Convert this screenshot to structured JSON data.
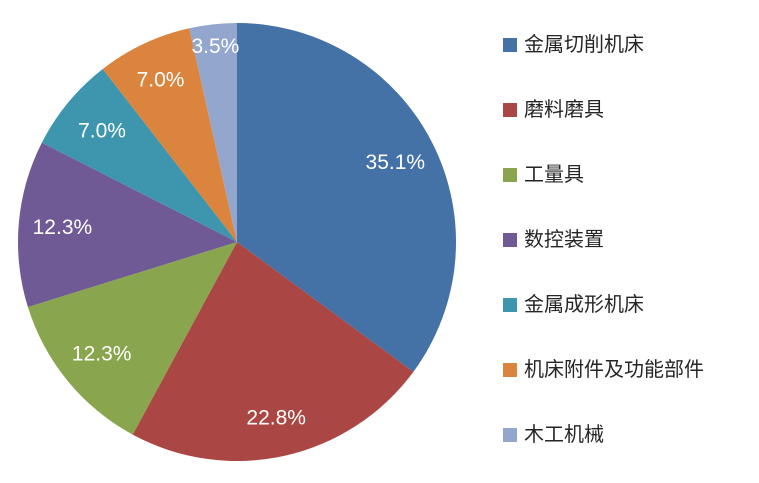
{
  "chart_data": {
    "type": "pie",
    "title": "",
    "legend_position": "right",
    "background_color": "#FFFFFF",
    "data_label_color": "#FFFFFF",
    "start_angle_deg": 0,
    "direction": "clockwise",
    "slices": [
      {
        "label": "金属切削机床",
        "value": 35.1,
        "display": "35.1%",
        "color": "#4471A6"
      },
      {
        "label": "磨料磨具",
        "value": 22.8,
        "display": "22.8%",
        "color": "#AA4643"
      },
      {
        "label": "工量具",
        "value": 12.3,
        "display": "12.3%",
        "color": "#89A54E"
      },
      {
        "label": "数控装置",
        "value": 12.3,
        "display": "12.3%",
        "color": "#705A96"
      },
      {
        "label": "金属成形机床",
        "value": 7.0,
        "display": "7.0%",
        "color": "#3D96AE"
      },
      {
        "label": "机床附件及功能部件",
        "value": 7.0,
        "display": "7.0%",
        "color": "#DB843D"
      },
      {
        "label": "木工机械",
        "value": 3.5,
        "display": "3.5%",
        "color": "#93A7CE"
      }
    ],
    "label_radius_factors": [
      0.81,
      0.82,
      0.8,
      0.8,
      0.8,
      0.82,
      0.9
    ]
  }
}
